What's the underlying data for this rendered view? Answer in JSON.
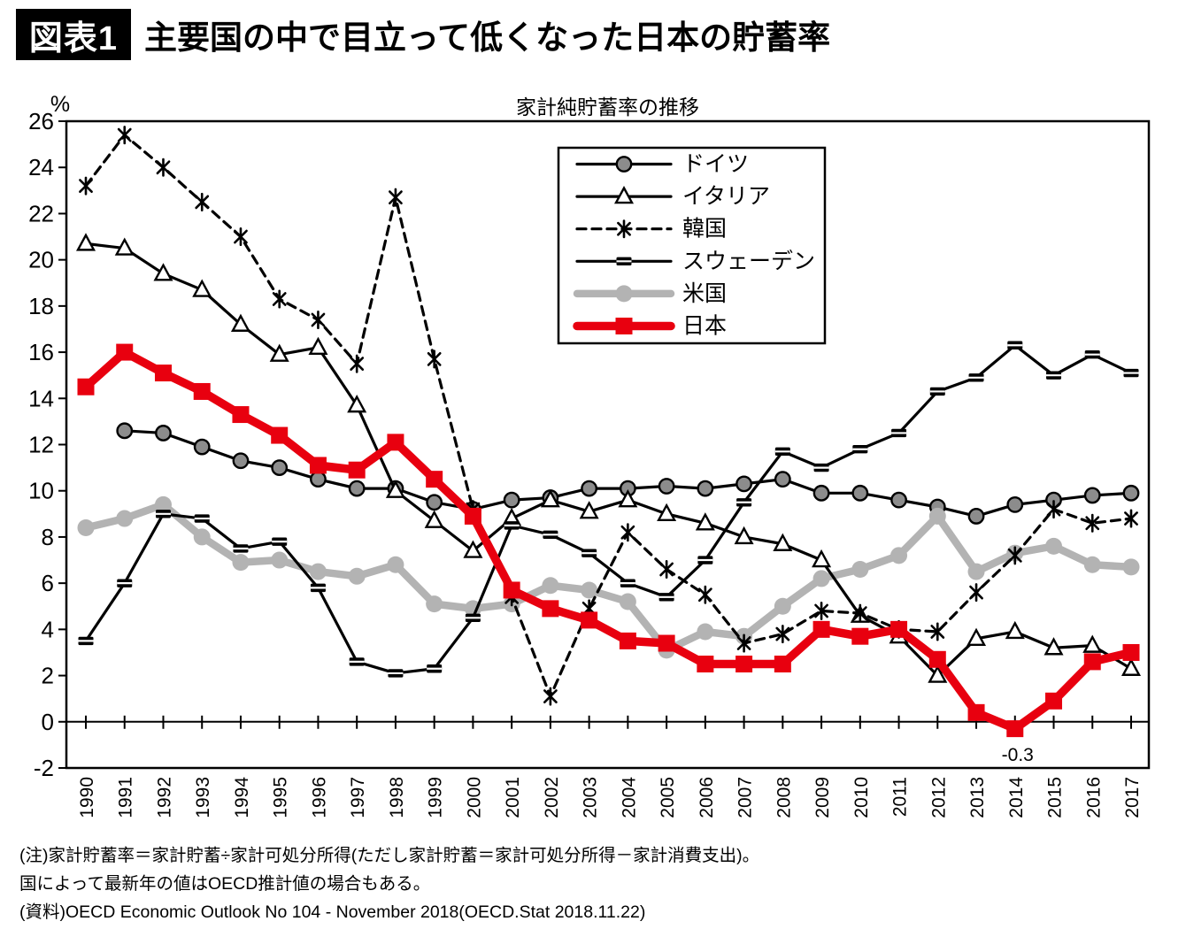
{
  "header": {
    "tag": "図表1",
    "title": "主要国の中で目立って低くなった日本の貯蓄率"
  },
  "notes": [
    "(注)家計貯蓄率＝家計貯蓄÷家計可処分所得(ただし家計貯蓄＝家計可処分所得－家計消費支出)。",
    "国によって最新年の値はOECD推計値の場合もある。",
    "(資料)OECD Economic Outlook No 104 - November 2018(OECD.Stat 2018.11.22)"
  ],
  "chart_data": {
    "type": "line",
    "title": "家計純貯蓄率の推移",
    "y_unit": "%",
    "ylim": [
      -2,
      26
    ],
    "y_ticks": [
      26,
      24,
      22,
      20,
      18,
      16,
      14,
      12,
      10,
      8,
      6,
      4,
      2,
      0,
      -2
    ],
    "grid": false,
    "legend_position": "top-right-inside",
    "x": [
      1990,
      1991,
      1992,
      1993,
      1994,
      1995,
      1996,
      1997,
      1998,
      1999,
      2000,
      2001,
      2002,
      2003,
      2004,
      2005,
      2006,
      2007,
      2008,
      2009,
      2010,
      2011,
      2012,
      2013,
      2014,
      2015,
      2016,
      2017
    ],
    "annotation": {
      "text": "-0.3",
      "year": 2014,
      "value": -0.3
    },
    "colors": {
      "black": "#000000",
      "japan_red": "#e8000f",
      "us_gray": "#b3b3b3",
      "germany_fill": "#8c8c8c",
      "white": "#ffffff"
    },
    "series": [
      {
        "id": "germany",
        "label": "ドイツ",
        "marker": "circle",
        "dash": "none",
        "width": 3.2,
        "color": "#000000",
        "marker_fill": "#8c8c8c",
        "values": [
          null,
          12.6,
          12.5,
          11.9,
          11.3,
          11.0,
          10.5,
          10.1,
          10.1,
          9.5,
          9.2,
          9.6,
          9.7,
          10.1,
          10.1,
          10.2,
          10.1,
          10.3,
          10.5,
          9.9,
          9.9,
          9.6,
          9.3,
          8.9,
          9.4,
          9.6,
          9.8,
          9.9
        ]
      },
      {
        "id": "usa",
        "label": "米国",
        "marker": "dot",
        "dash": "none",
        "width": 8.5,
        "color": "#b3b3b3",
        "marker_fill": "#b3b3b3",
        "values": [
          8.4,
          8.8,
          9.4,
          8.0,
          6.9,
          7.0,
          6.5,
          6.3,
          6.8,
          5.1,
          4.9,
          5.1,
          5.9,
          5.7,
          5.2,
          3.1,
          3.9,
          3.7,
          5.0,
          6.2,
          6.6,
          7.2,
          8.9,
          6.5,
          7.3,
          7.6,
          6.8,
          6.7
        ]
      },
      {
        "id": "italy",
        "label": "イタリア",
        "marker": "triangle",
        "dash": "none",
        "width": 3.2,
        "color": "#000000",
        "marker_fill": "#ffffff",
        "values": [
          20.7,
          20.5,
          19.4,
          18.7,
          17.2,
          15.9,
          16.2,
          13.7,
          10.0,
          8.7,
          7.4,
          8.8,
          9.6,
          9.1,
          9.6,
          9.0,
          8.6,
          8.0,
          7.7,
          7.0,
          4.6,
          3.7,
          2.0,
          3.6,
          3.9,
          3.2,
          3.3,
          2.3
        ]
      },
      {
        "id": "sweden",
        "label": "スウェーデン",
        "marker": "bar",
        "dash": "none",
        "width": 3.2,
        "color": "#000000",
        "marker_fill": "#000000",
        "values": [
          3.5,
          6.0,
          9.0,
          8.8,
          7.5,
          7.8,
          5.8,
          2.6,
          2.1,
          2.3,
          4.5,
          8.5,
          8.1,
          7.3,
          6.0,
          5.4,
          7.0,
          9.5,
          11.7,
          11.0,
          11.8,
          12.5,
          14.3,
          14.9,
          16.3,
          15.0,
          15.9,
          15.1
        ]
      },
      {
        "id": "korea",
        "label": "韓国",
        "marker": "asterisk",
        "dash": "dashed",
        "width": 3.2,
        "color": "#000000",
        "marker_fill": "#000000",
        "values": [
          23.2,
          25.4,
          24.0,
          22.5,
          21.0,
          18.3,
          17.4,
          15.5,
          22.7,
          15.7,
          9.2,
          5.4,
          1.1,
          4.9,
          8.2,
          6.6,
          5.5,
          3.4,
          3.8,
          4.8,
          4.7,
          4.0,
          3.9,
          5.6,
          7.2,
          9.2,
          8.6,
          8.8
        ]
      },
      {
        "id": "japan",
        "label": "日本",
        "marker": "square",
        "dash": "none",
        "width": 9.5,
        "color": "#e8000f",
        "marker_fill": "#e8000f",
        "values": [
          14.5,
          16.0,
          15.1,
          14.3,
          13.3,
          12.4,
          11.1,
          10.9,
          12.1,
          10.5,
          8.9,
          5.7,
          4.9,
          4.4,
          3.5,
          3.4,
          2.5,
          2.5,
          2.5,
          4.0,
          3.7,
          4.0,
          2.7,
          0.4,
          -0.3,
          0.9,
          2.6,
          3.0
        ]
      }
    ],
    "legend_order": [
      "germany",
      "italy",
      "korea",
      "sweden",
      "usa",
      "japan"
    ]
  }
}
